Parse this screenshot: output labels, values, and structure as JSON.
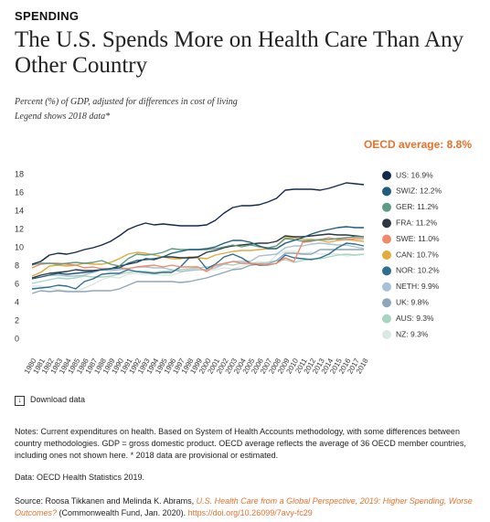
{
  "header": {
    "kicker": "SPENDING",
    "title": "The U.S. Spends More on Health Care Than Any Other Country",
    "subtitle": "Percent (%) of GDP, adjusted for differences in cost of living",
    "subtitle2": "Legend shows 2018 data*"
  },
  "chart_data": {
    "type": "line",
    "annotation": "OECD average: 8.8%",
    "x": [
      1980,
      1981,
      1982,
      1983,
      1984,
      1985,
      1986,
      1987,
      1988,
      1989,
      1990,
      1991,
      1992,
      1993,
      1994,
      1995,
      1996,
      1997,
      1998,
      1999,
      2000,
      2001,
      2002,
      2003,
      2004,
      2005,
      2006,
      2007,
      2008,
      2009,
      2010,
      2011,
      2012,
      2013,
      2014,
      2015,
      2016,
      2017,
      2018
    ],
    "xlim": [
      1980,
      2018
    ],
    "xticks": [
      1980,
      1981,
      1982,
      1983,
      1984,
      1985,
      1986,
      1987,
      1988,
      1989,
      1990,
      1991,
      1992,
      1993,
      1994,
      1995,
      1996,
      1997,
      1998,
      1999,
      2000,
      2001,
      2002,
      2003,
      2004,
      2005,
      2006,
      2007,
      2008,
      2009,
      2010,
      2011,
      2012,
      2013,
      2014,
      2015,
      2016,
      2017,
      2018
    ],
    "ylim": [
      0,
      18
    ],
    "yticks": [
      0,
      2,
      4,
      6,
      8,
      10,
      12,
      14,
      16,
      18
    ],
    "grid": false,
    "series": [
      {
        "name": "US: 16.9%",
        "color": "#14294a",
        "values": [
          8.2,
          8.5,
          9.2,
          9.4,
          9.3,
          9.5,
          9.8,
          10.0,
          10.3,
          10.7,
          11.3,
          12.0,
          12.4,
          12.7,
          12.5,
          12.6,
          12.5,
          12.4,
          12.4,
          12.4,
          12.5,
          13.0,
          13.8,
          14.4,
          14.6,
          14.6,
          14.7,
          15.0,
          15.4,
          16.3,
          16.4,
          16.4,
          16.4,
          16.3,
          16.5,
          16.8,
          17.1,
          17.0,
          16.9
        ]
      },
      {
        "name": "SWIZ: 12.2%",
        "color": "#1f5d7e",
        "values": [
          6.6,
          6.8,
          7.0,
          7.2,
          7.1,
          7.2,
          7.3,
          7.4,
          7.6,
          7.7,
          7.8,
          8.3,
          8.6,
          8.7,
          8.8,
          9.0,
          9.4,
          9.6,
          9.8,
          9.8,
          9.9,
          10.1,
          10.5,
          10.8,
          10.8,
          10.6,
          10.2,
          9.9,
          9.9,
          10.5,
          10.8,
          11.1,
          11.5,
          11.8,
          12.0,
          12.2,
          12.3,
          12.2,
          12.2
        ]
      },
      {
        "name": "GER: 11.2%",
        "color": "#5e9c84",
        "values": [
          8.1,
          8.3,
          8.3,
          8.2,
          8.3,
          8.4,
          8.3,
          8.4,
          8.6,
          8.2,
          8.0,
          8.8,
          9.3,
          9.2,
          9.3,
          9.5,
          9.9,
          9.8,
          9.8,
          9.8,
          9.8,
          9.9,
          10.1,
          10.3,
          10.1,
          10.3,
          10.1,
          10.0,
          10.2,
          11.0,
          10.9,
          10.7,
          10.8,
          10.9,
          10.9,
          11.0,
          11.1,
          11.2,
          11.2
        ]
      },
      {
        "name": "FRA: 11.2%",
        "color": "#2e3742",
        "values": [
          6.7,
          7.0,
          7.2,
          7.3,
          7.4,
          7.6,
          7.5,
          7.5,
          7.6,
          7.7,
          8.0,
          8.2,
          8.4,
          8.8,
          8.7,
          9.0,
          9.0,
          8.9,
          8.9,
          9.0,
          9.5,
          9.7,
          10.0,
          10.2,
          10.3,
          10.4,
          10.5,
          10.5,
          10.7,
          11.3,
          11.2,
          11.2,
          11.3,
          11.4,
          11.5,
          11.4,
          11.4,
          11.3,
          11.2
        ]
      },
      {
        "name": "SWE: 11.0%",
        "color": "#f0896a",
        "values": [
          7.8,
          8.2,
          8.3,
          8.3,
          8.2,
          8.1,
          7.8,
          7.9,
          7.7,
          7.7,
          7.8,
          7.7,
          7.9,
          8.0,
          8.1,
          7.9,
          8.1,
          7.9,
          7.9,
          7.9,
          7.4,
          8.1,
          8.3,
          8.5,
          8.3,
          8.3,
          8.2,
          8.1,
          8.3,
          8.9,
          8.5,
          10.6,
          10.7,
          10.9,
          11.1,
          10.9,
          10.9,
          11.0,
          11.0
        ]
      },
      {
        "name": "CAN: 10.7%",
        "color": "#e2a93b",
        "values": [
          6.9,
          7.3,
          8.0,
          8.1,
          8.0,
          8.1,
          8.3,
          8.2,
          8.2,
          8.4,
          8.8,
          9.3,
          9.5,
          9.4,
          9.2,
          9.0,
          8.8,
          8.8,
          9.0,
          8.9,
          8.8,
          9.2,
          9.4,
          9.6,
          9.7,
          9.7,
          9.8,
          9.9,
          10.2,
          11.1,
          11.1,
          10.9,
          10.9,
          10.8,
          10.6,
          10.8,
          10.9,
          10.8,
          10.7
        ]
      },
      {
        "name": "NOR: 10.2%",
        "color": "#2f6e90",
        "values": [
          5.5,
          5.6,
          5.7,
          5.9,
          5.8,
          5.5,
          6.3,
          6.6,
          7.1,
          7.2,
          7.2,
          7.6,
          7.4,
          7.3,
          7.2,
          7.3,
          7.3,
          7.9,
          8.9,
          8.9,
          7.7,
          8.2,
          9.0,
          9.3,
          8.9,
          8.3,
          8.1,
          8.1,
          8.3,
          9.2,
          8.9,
          8.8,
          8.7,
          8.9,
          9.3,
          10.0,
          10.5,
          10.4,
          10.2
        ]
      },
      {
        "name": "NETH: 9.9%",
        "color": "#a9c1d4",
        "values": [
          6.6,
          6.8,
          7.0,
          7.0,
          6.9,
          6.9,
          7.0,
          7.3,
          7.6,
          7.5,
          7.6,
          7.7,
          7.9,
          7.9,
          7.8,
          7.8,
          7.6,
          7.4,
          7.5,
          7.6,
          7.6,
          7.8,
          8.2,
          8.5,
          8.5,
          8.5,
          9.1,
          9.2,
          9.3,
          10.0,
          10.2,
          10.2,
          10.4,
          10.5,
          10.4,
          10.3,
          10.3,
          10.1,
          9.9
        ]
      },
      {
        "name": "UK: 9.8%",
        "color": "#8ea6b9",
        "values": [
          5.0,
          5.3,
          5.2,
          5.3,
          5.2,
          5.2,
          5.2,
          5.3,
          5.3,
          5.3,
          5.5,
          5.9,
          6.3,
          6.3,
          6.3,
          6.3,
          6.3,
          6.2,
          6.3,
          6.5,
          6.7,
          7.0,
          7.3,
          7.6,
          7.7,
          8.1,
          8.2,
          8.2,
          8.6,
          9.4,
          9.4,
          9.3,
          9.3,
          9.8,
          9.8,
          9.8,
          9.8,
          9.8,
          9.8
        ]
      },
      {
        "name": "AUS: 9.3%",
        "color": "#a9d4c2",
        "values": [
          6.1,
          6.3,
          6.5,
          6.7,
          6.6,
          6.7,
          6.9,
          6.8,
          6.8,
          6.9,
          7.1,
          7.3,
          7.4,
          7.4,
          7.3,
          7.4,
          7.5,
          7.6,
          7.7,
          7.8,
          7.9,
          8.0,
          8.2,
          8.1,
          8.3,
          8.3,
          8.3,
          8.4,
          8.6,
          8.7,
          8.4,
          8.6,
          8.8,
          8.8,
          9.0,
          9.2,
          9.3,
          9.2,
          9.3
        ]
      },
      {
        "name": "NZ: 9.3%",
        "color": "#dbe7e2",
        "values": [
          5.8,
          5.8,
          5.6,
          5.4,
          5.3,
          5.2,
          5.6,
          6.0,
          6.5,
          6.8,
          6.7,
          7.1,
          7.2,
          7.1,
          7.1,
          7.0,
          7.0,
          7.3,
          7.6,
          7.6,
          7.5,
          7.6,
          7.8,
          7.7,
          8.0,
          8.3,
          8.5,
          8.3,
          9.2,
          9.6,
          9.6,
          9.4,
          9.5,
          9.3,
          9.3,
          9.3,
          9.1,
          9.2,
          9.3
        ]
      }
    ]
  },
  "download": "Download data",
  "notes": {
    "text": "Notes: Current expenditures on health. Based on System of Health Accounts methodology, with some differences between country methodologies. GDP = gross domestic product. OECD average reflects the average of 36 OECD member countries, including ones not shown here. * 2018 data are provisional or estimated.",
    "data_source": "Data: OECD Health Statistics 2019.",
    "source_prefix": "Source: Roosa Tikkanen and Melinda K. Abrams,",
    "source_link": "U.S. Health Care from a Global Perspective, 2019: Higher Spending, Worse Outcomes?",
    "source_publisher": "(Commonwealth Fund, Jan. 2020).",
    "source_url": "https://doi.org/10.26099/7avy-fc29"
  }
}
